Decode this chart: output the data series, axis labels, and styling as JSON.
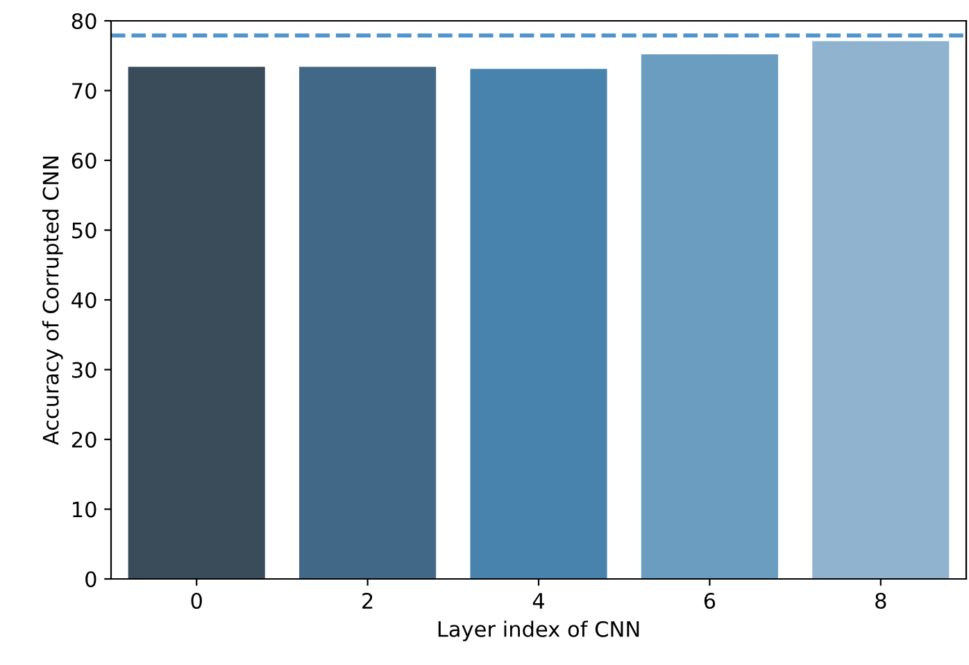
{
  "chart_data": {
    "type": "bar",
    "xlabel": "Layer index of CNN",
    "ylabel": "Accuracy of Corrupted CNN",
    "categories": [
      "0",
      "2",
      "4",
      "6",
      "8"
    ],
    "values": [
      73.4,
      73.4,
      73.1,
      75.2,
      77.1
    ],
    "colors": [
      "#3a4c5a",
      "#416886",
      "#4883ae",
      "#6b9dc0",
      "#90b4cf"
    ],
    "ylim": [
      0,
      80
    ],
    "yticks": [
      0,
      10,
      20,
      30,
      40,
      50,
      60,
      70,
      80
    ],
    "ref_lines": [
      {
        "axis": "y",
        "value": 77.9,
        "color": "#4f94cd",
        "line_style": "dashed"
      }
    ]
  }
}
